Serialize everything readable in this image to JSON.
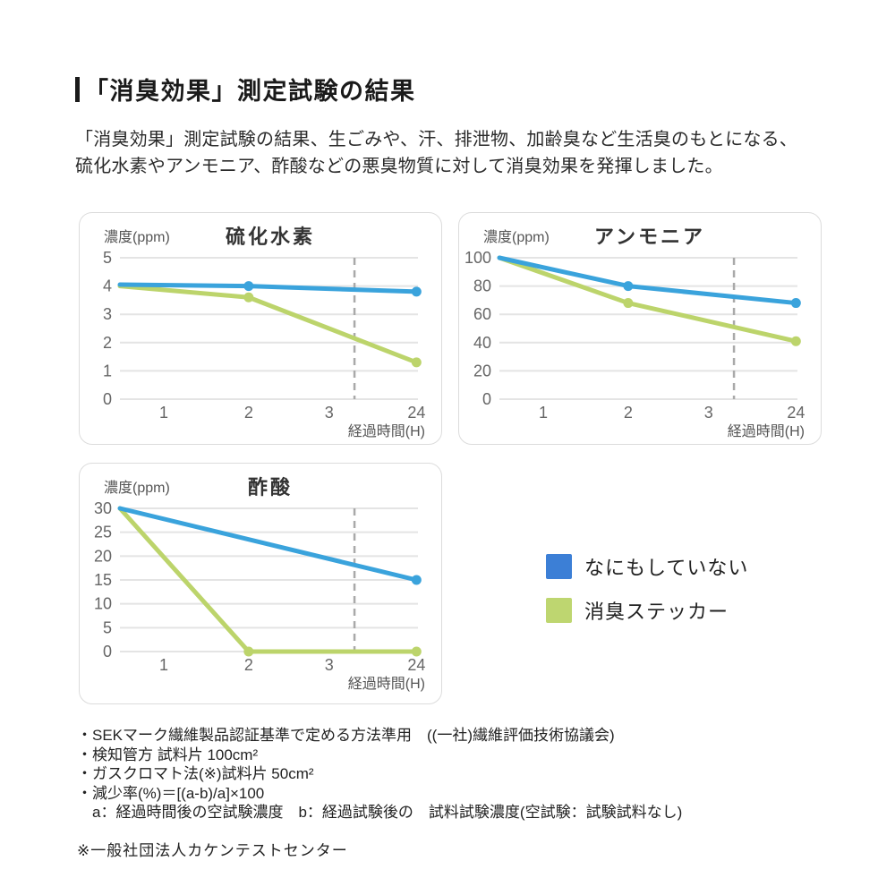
{
  "header": {
    "title": "「消臭効果」測定試験の結果",
    "paragraph_lines": [
      "「消臭効果」測定試験の結果、生ごみや、汗、排泄物、加齢臭など生活臭のもとになる、",
      "硫化水素やアンモニア、酢酸などの悪臭物質に対して消臭効果を発揮しました。"
    ]
  },
  "colors": {
    "line_blue": "#3AA3DC",
    "line_green": "#BCD46B",
    "legend_blue": "#3C7FD6",
    "legend_green": "#BED670",
    "grid": "#E4E4E4",
    "dashed_line": "#A9A9A9",
    "card_border": "#DCDCDC",
    "accent_bar": "#1A1A1A"
  },
  "legend": {
    "items": [
      {
        "label": "なにもしていない",
        "color": "#3C7FD6"
      },
      {
        "label": "消臭ステッカー",
        "color": "#BED670"
      }
    ]
  },
  "chart_data": [
    {
      "type": "line",
      "title": "硫化水素",
      "ylabel": "濃度(ppm)",
      "xlabel": "経過時間(H)",
      "x_ticks": [
        "1",
        "2",
        "3",
        "24"
      ],
      "y_ticks": [
        0,
        1,
        2,
        3,
        4,
        5
      ],
      "ylim": [
        0,
        5
      ],
      "grid": true,
      "axis_break_dashed_line_between": [
        "3",
        "24"
      ],
      "series": [
        {
          "name": "なにもしていない",
          "color": "#3AA3DC",
          "points": [
            [
              0,
              4.05
            ],
            [
              2,
              4.0
            ],
            [
              24,
              3.8
            ]
          ]
        },
        {
          "name": "消臭ステッカー",
          "color": "#BCD46B",
          "points": [
            [
              0,
              4.0
            ],
            [
              2,
              3.6
            ],
            [
              24,
              1.3
            ]
          ]
        }
      ]
    },
    {
      "type": "line",
      "title": "アンモニア",
      "ylabel": "濃度(ppm)",
      "xlabel": "経過時間(H)",
      "x_ticks": [
        "1",
        "2",
        "3",
        "24"
      ],
      "y_ticks": [
        0,
        20,
        40,
        60,
        80,
        100
      ],
      "ylim": [
        0,
        100
      ],
      "grid": true,
      "axis_break_dashed_line_between": [
        "3",
        "24"
      ],
      "series": [
        {
          "name": "なにもしていない",
          "color": "#3AA3DC",
          "points": [
            [
              0,
              100
            ],
            [
              2,
              80
            ],
            [
              24,
              68
            ]
          ]
        },
        {
          "name": "消臭ステッカー",
          "color": "#BCD46B",
          "points": [
            [
              0,
              100
            ],
            [
              2,
              68
            ],
            [
              24,
              41
            ]
          ]
        }
      ]
    },
    {
      "type": "line",
      "title": "酢酸",
      "ylabel": "濃度(ppm)",
      "xlabel": "経過時間(H)",
      "x_ticks": [
        "1",
        "2",
        "3",
        "24"
      ],
      "y_ticks": [
        0,
        5,
        10,
        15,
        20,
        25,
        30
      ],
      "ylim": [
        0,
        30
      ],
      "grid": true,
      "axis_break_dashed_line_between": [
        "3",
        "24"
      ],
      "series": [
        {
          "name": "なにもしていない",
          "color": "#3AA3DC",
          "points": [
            [
              0,
              30
            ],
            [
              24,
              15
            ]
          ]
        },
        {
          "name": "消臭ステッカー",
          "color": "#BCD46B",
          "points": [
            [
              0,
              30
            ],
            [
              2,
              0
            ],
            [
              24,
              0
            ]
          ]
        }
      ]
    }
  ],
  "footnotes": [
    "・SEKマーク繊維製品認証基準で定める方法準用　((一社)繊維評価技術協議会)",
    "・検知管方 試料片 100cm²",
    "・ガスクロマト法(※)試料片 50cm²",
    "・減少率(%)＝[(a-b)/a]×100",
    "　a：経過時間後の空試験濃度　b：経過試験後の　試料試験濃度(空試験：試験試料なし)"
  ],
  "note": "※一般社団法人カケンテストセンター"
}
